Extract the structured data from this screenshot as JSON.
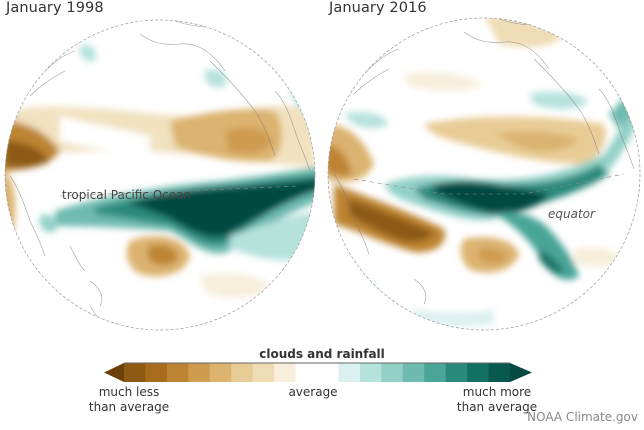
{
  "panels": [
    {
      "title": "January 1998",
      "annotation": "tropical Pacific Ocean"
    },
    {
      "title": "January 2016",
      "annotation": "equator"
    }
  ],
  "legend": {
    "title": "clouds and rainfall",
    "low_label_line1": "much less",
    "low_label_line2": "than average",
    "mid_label": "average",
    "high_label_line1": "much more",
    "high_label_line2": "than average",
    "colors": [
      "#6b4109",
      "#8c5a12",
      "#a86c1c",
      "#bd8433",
      "#cf9b4f",
      "#dcb36f",
      "#e8cc96",
      "#efdcb4",
      "#f7eedb",
      "#ffffff",
      "#ffffff",
      "#dbf1ef",
      "#b6e2dc",
      "#93d0c7",
      "#6fbbb0",
      "#4aa498",
      "#2a897d",
      "#127064",
      "#085a50",
      "#044a40"
    ]
  },
  "credit": "NOAA Climate.gov",
  "colors": {
    "dry_dark": "#6b4109",
    "dry_mid": "#c89448",
    "dry_light": "#efdcb4",
    "wet_light": "#b6e2dc",
    "wet_mid": "#4aa498",
    "wet_dark": "#044a40"
  }
}
